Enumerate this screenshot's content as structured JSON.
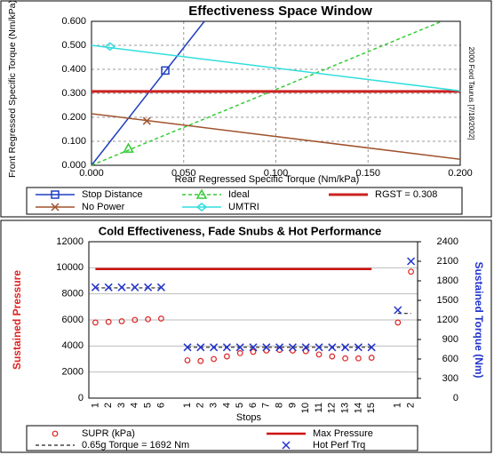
{
  "chart_data": [
    {
      "type": "line",
      "title": "Effectiveness Space Window",
      "x_label": "Rear Regressed Specific Torque (Nm/kPa)",
      "y_label": "Front Regressed Specific Torque (Nm/kPa)",
      "annotation": "2000 Ford Taurus [7/18/2002]",
      "xlim": [
        0,
        0.2
      ],
      "xticks": [
        {
          "value": 0,
          "label": "0.000"
        },
        {
          "value": 0.05,
          "label": "0.050"
        },
        {
          "value": 0.1,
          "label": "0.100"
        },
        {
          "value": 0.15,
          "label": "0.150"
        },
        {
          "value": 0.2,
          "label": "0.200"
        }
      ],
      "ylim": [
        0,
        0.6
      ],
      "yticks": [
        {
          "value": 0,
          "label": "0.000"
        },
        {
          "value": 0.1,
          "label": "0.100"
        },
        {
          "value": 0.2,
          "label": "0.200"
        },
        {
          "value": 0.3,
          "label": "0.300"
        },
        {
          "value": 0.4,
          "label": "0.400"
        },
        {
          "value": 0.5,
          "label": "0.500"
        },
        {
          "value": 0.6,
          "label": "0.600"
        }
      ],
      "grid": true,
      "series": [
        {
          "name": "Stop Distance",
          "color": "#1f3fbf",
          "marker": "square",
          "x": [
            0,
            0.0612
          ],
          "values": [
            0,
            0.6
          ],
          "marker_x": [
            0.04
          ],
          "marker_values": [
            0.395
          ]
        },
        {
          "name": "Ideal",
          "color": "#33cc33",
          "marker": "triangle",
          "dash": true,
          "x": [
            0,
            0.19
          ],
          "values": [
            0,
            0.6
          ],
          "marker_x": [
            0.02
          ],
          "marker_values": [
            0.07
          ]
        },
        {
          "name": "RGST = 0.308",
          "color": "#cc2222",
          "marker": "none",
          "width": 3,
          "x": [
            0,
            0.2
          ],
          "values": [
            0.308,
            0.308
          ]
        },
        {
          "name": "No Power",
          "color": "#a0522d",
          "marker": "x",
          "x": [
            0,
            0.2
          ],
          "values": [
            0.215,
            0.025
          ],
          "marker_x": [
            0.03
          ],
          "marker_values": [
            0.185
          ]
        },
        {
          "name": "UMTRI",
          "color": "#33dddd",
          "marker": "diamond",
          "x": [
            0,
            0.2
          ],
          "values": [
            0.5,
            0.31
          ],
          "marker_x": [
            0.01
          ],
          "marker_values": [
            0.495
          ]
        }
      ]
    },
    {
      "type": "combo",
      "title": "Cold Effectiveness, Fade Snubs & Hot Performance",
      "x_label": "Stops",
      "y_label": "Sustained Pressure",
      "y2_label": "Sustained Torque (Nm)",
      "categories": [
        "1",
        "2",
        "3",
        "4",
        "5",
        "6",
        null,
        "1",
        "2",
        "3",
        "4",
        "5",
        "6",
        "7",
        "8",
        "9",
        "10",
        "11",
        "12",
        "13",
        "14",
        "15",
        null,
        "1",
        "2"
      ],
      "ylim": [
        0,
        12000
      ],
      "yticks": [
        0,
        2000,
        4000,
        6000,
        8000,
        10000,
        12000
      ],
      "y2lim": [
        0,
        2400
      ],
      "y2ticks": [
        0,
        300,
        600,
        900,
        1200,
        1500,
        1800,
        2100,
        2400
      ],
      "grid": true,
      "series": [
        {
          "name": "SUPR (kPa)",
          "color": "#dd2222",
          "marker": "circle",
          "values": [
            5800,
            5850,
            5900,
            6000,
            6050,
            6100,
            null,
            2900,
            2850,
            3000,
            3200,
            3450,
            3550,
            3650,
            3700,
            3650,
            3600,
            3350,
            3200,
            3050,
            3050,
            3100,
            null,
            5800,
            9700
          ]
        },
        {
          "name": "Max Pressure",
          "color": "#cc1111",
          "marker": "none",
          "width": 2.5,
          "values": [
            9900,
            9900,
            9900,
            9900,
            9900,
            9900,
            9900,
            9900,
            9900,
            9900,
            9900,
            9900,
            9900,
            9900,
            9900,
            9900,
            9900,
            9900,
            9900,
            9900,
            9900,
            9900,
            null,
            null,
            null
          ]
        },
        {
          "name": "0.65g Torque = 1692 Nm",
          "color": "#222222",
          "marker": "none",
          "dash": true,
          "axis": "y2",
          "values": [
            1692,
            1692,
            1692,
            1692,
            1692,
            1692,
            null,
            780,
            780,
            780,
            780,
            780,
            780,
            780,
            780,
            780,
            780,
            780,
            780,
            780,
            780,
            780,
            null,
            1300,
            1300
          ]
        },
        {
          "name": "Hot Perf Trq",
          "color": "#2233cc",
          "marker": "x",
          "axis": "y2",
          "values": [
            1700,
            1700,
            1700,
            1700,
            1700,
            1700,
            null,
            780,
            780,
            780,
            780,
            780,
            780,
            780,
            780,
            780,
            780,
            780,
            780,
            780,
            780,
            780,
            null,
            1350,
            2100
          ]
        }
      ]
    }
  ]
}
